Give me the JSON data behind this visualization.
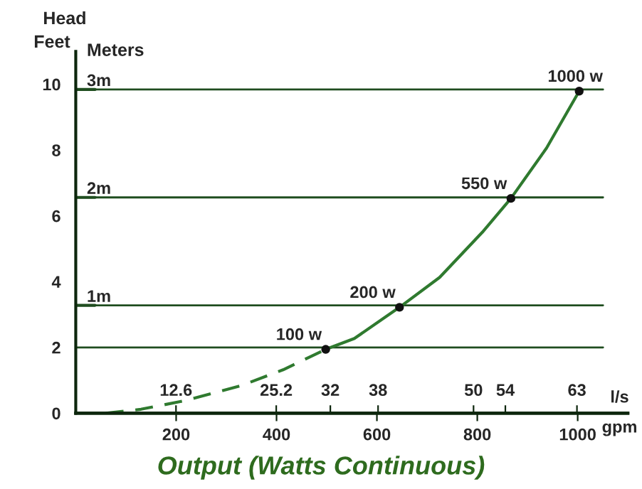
{
  "chart_data": {
    "type": "line",
    "title": "Output (Watts Continuous)",
    "xlabel": "gpm",
    "x2label": "l/s",
    "ylabel": "Feet",
    "annotations": [
      "Head",
      "Meters",
      {
        "text": "100 w",
        "x": 498,
        "y": 1.94
      },
      {
        "text": "200 w",
        "x": 645,
        "y": 3.22
      },
      {
        "text": "550 w",
        "x": 867,
        "y": 6.53
      },
      {
        "text": "1000 w",
        "x": 1003,
        "y": 9.79
      }
    ],
    "xlim": [
      0,
      1100
    ],
    "xticks": [
      200,
      400,
      600,
      800,
      1000
    ],
    "x2lim": [
      0,
      69.4
    ],
    "x2ticks": [
      12.6,
      25.2,
      32,
      38,
      50,
      54,
      63
    ],
    "ylim": [
      0,
      11
    ],
    "yticks": [
      0,
      2,
      4,
      6,
      8,
      10
    ],
    "ref_lines": [
      {
        "axis": "y",
        "value": 2,
        "label": null,
        "color": "#1f4d1f"
      },
      {
        "axis": "y",
        "value": 3.28,
        "label": "1m",
        "color": "#1f4d1f"
      },
      {
        "axis": "y",
        "value": 6.56,
        "label": "2m",
        "color": "#1f4d1f"
      },
      {
        "axis": "y",
        "value": 9.84,
        "label": "3m",
        "color": "#1f4d1f"
      }
    ],
    "series": [
      {
        "line_style": "dashed",
        "color": "#2f7a2f",
        "x": [
          60,
          130,
          214,
          328,
          413,
          498
        ],
        "values": [
          0,
          0.12,
          0.37,
          0.83,
          1.32,
          1.94
        ]
      },
      {
        "line_style": "solid",
        "color": "#2f7a2f",
        "x": [
          498,
          555,
          645,
          725,
          810,
          867,
          938,
          1003
        ],
        "values": [
          1.94,
          2.27,
          3.22,
          4.13,
          5.5,
          6.53,
          8.06,
          9.79
        ]
      },
      {
        "type": "scatter",
        "marker": "circle",
        "color": "#111111",
        "x": [
          498,
          645,
          867,
          1003
        ],
        "values": [
          1.94,
          3.22,
          6.53,
          9.79
        ]
      }
    ]
  }
}
